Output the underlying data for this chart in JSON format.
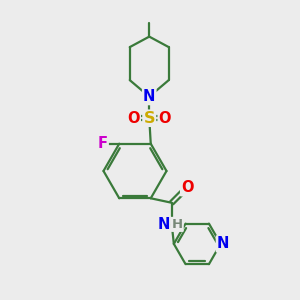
{
  "bg_color": "#ececec",
  "bond_color": "#3a7a3a",
  "atom_colors": {
    "N": "#0000ee",
    "O": "#ee0000",
    "S": "#ccaa00",
    "F": "#cc00cc",
    "H": "#778877",
    "C": "#000000"
  },
  "line_width": 1.6,
  "font_size": 10.5,
  "fig_width": 3.0,
  "fig_height": 3.0,
  "dpi": 100
}
